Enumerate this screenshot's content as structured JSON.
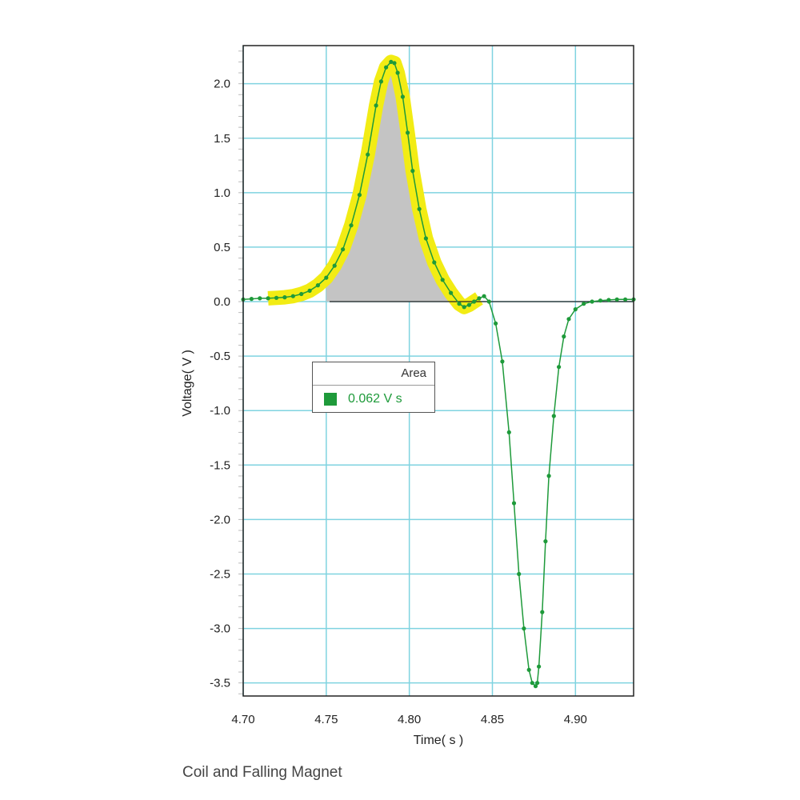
{
  "caption": "Coil and Falling Magnet",
  "chart_data": {
    "type": "line",
    "title": "",
    "xlabel": "Time( s )",
    "ylabel": "Voltage( V )",
    "xlim": [
      4.7,
      4.935
    ],
    "ylim": [
      -3.62,
      2.35
    ],
    "x_ticks": [
      4.7,
      4.75,
      4.8,
      4.85,
      4.9
    ],
    "x_tick_labels": [
      "4.70",
      "4.75",
      "4.80",
      "4.85",
      "4.90"
    ],
    "y_ticks": [
      2.0,
      1.5,
      1.0,
      0.5,
      0.0,
      -0.5,
      -1.0,
      -1.5,
      -2.0,
      -2.5,
      -3.0,
      -3.5
    ],
    "y_tick_labels": [
      "2.0",
      "1.5",
      "1.0",
      "0.5",
      "0.0",
      "-0.5",
      "-1.0",
      "-1.5",
      "-2.0",
      "-2.5",
      "-3.0",
      "-3.5"
    ],
    "grid": true,
    "series": [
      {
        "color": "#1e9a3a",
        "x": [
          4.7,
          4.705,
          4.71,
          4.715,
          4.72,
          4.725,
          4.73,
          4.735,
          4.74,
          4.745,
          4.75,
          4.755,
          4.76,
          4.765,
          4.77,
          4.775,
          4.78,
          4.783,
          4.786,
          4.789,
          4.791,
          4.793,
          4.796,
          4.799,
          4.802,
          4.806,
          4.81,
          4.815,
          4.82,
          4.825,
          4.83,
          4.833,
          4.836,
          4.839,
          4.842,
          4.845,
          4.848,
          4.852,
          4.856,
          4.86,
          4.863,
          4.866,
          4.869,
          4.872,
          4.874,
          4.876,
          4.877,
          4.878,
          4.88,
          4.882,
          4.884,
          4.887,
          4.89,
          4.893,
          4.896,
          4.9,
          4.905,
          4.91,
          4.915,
          4.92,
          4.925,
          4.93,
          4.935
        ],
        "y": [
          0.02,
          0.025,
          0.03,
          0.03,
          0.035,
          0.04,
          0.05,
          0.07,
          0.1,
          0.15,
          0.22,
          0.33,
          0.48,
          0.7,
          0.98,
          1.35,
          1.8,
          2.02,
          2.15,
          2.2,
          2.19,
          2.1,
          1.88,
          1.55,
          1.2,
          0.85,
          0.58,
          0.36,
          0.2,
          0.08,
          -0.02,
          -0.05,
          -0.03,
          0.0,
          0.03,
          0.05,
          0.0,
          -0.2,
          -0.55,
          -1.2,
          -1.85,
          -2.5,
          -3.0,
          -3.38,
          -3.5,
          -3.53,
          -3.5,
          -3.35,
          -2.85,
          -2.2,
          -1.6,
          -1.05,
          -0.6,
          -0.32,
          -0.16,
          -0.07,
          -0.02,
          0.0,
          0.01,
          0.015,
          0.02,
          0.02,
          0.02
        ]
      }
    ],
    "highlight": {
      "x_start": 4.713,
      "x_end": 4.842,
      "color": "#f2ec14"
    },
    "area_fill": {
      "color": "#c4c4c4"
    },
    "legend": {
      "title": "Area",
      "value": "0.062 V s",
      "placement": "center-left",
      "color": "#1e9a3a"
    }
  }
}
